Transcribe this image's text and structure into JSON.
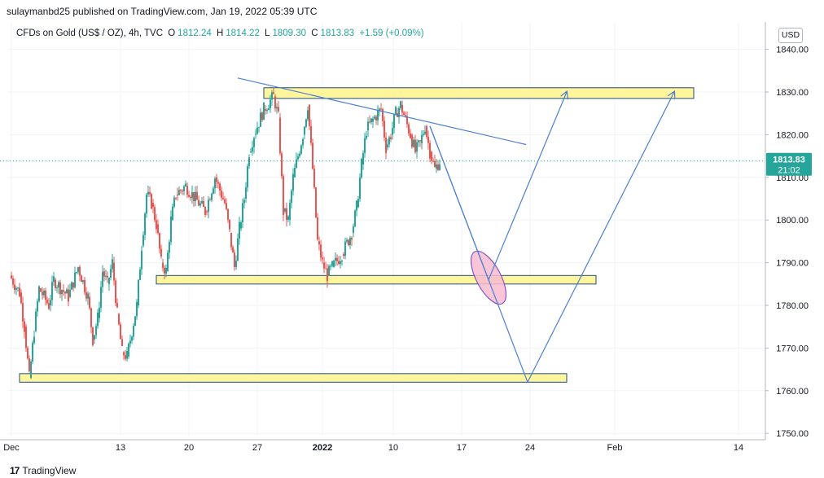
{
  "header": {
    "published_line": "sulaymanbd25 published on TradingView.com, Jan 19, 2022 05:39 UTC"
  },
  "legend": {
    "symbol": "CFDs on Gold (US$ / OZ), 4h, TVC",
    "open_label": "O",
    "open": "1812.24",
    "high_label": "H",
    "high": "1814.22",
    "low_label": "L",
    "low": "1809.30",
    "close_label": "C",
    "close": "1813.83",
    "change": "+1.59 (+0.09%)"
  },
  "currency_button": "USD",
  "price_badge": {
    "price": "1813.83",
    "countdown": "21:02"
  },
  "footer": {
    "brand": "TradingView",
    "logo_mark": "17"
  },
  "colors": {
    "up": "#26a69a",
    "down": "#ef5350",
    "zone_fill": "#fff59d",
    "zone_border": "#1e4d7a",
    "drawing": "#4a7fd4",
    "ellipse_fill": "#f8bbd0",
    "ellipse_stroke": "#7e57c2",
    "grid": "#f0f3fa",
    "axis_text": "#131722",
    "price_line": "#26a69a",
    "badge_bg": "#26a69a"
  },
  "chart_data": {
    "type": "candlestick",
    "title": "CFDs on Gold (US$ / OZ), 4h, TVC",
    "y_axis": {
      "ticks": [
        1750,
        1760,
        1770,
        1780,
        1790,
        1800,
        1810,
        1820,
        1830,
        1840
      ],
      "tick_labels": [
        "1750.00",
        "1760.00",
        "1770.00",
        "1780.00",
        "1790.00",
        "1800.00",
        "1810.00",
        "1820.00",
        "1830.00",
        "1840.00"
      ],
      "range": [
        1749.5,
        1848.0
      ],
      "position": "right"
    },
    "x_axis": {
      "tick_labels": [
        "Dec",
        "13",
        "20",
        "27",
        "2022",
        "10",
        "17",
        "24",
        "Feb",
        "14"
      ],
      "range_days": [
        "2021-12-06",
        "2022-02-14"
      ]
    },
    "last_price": 1813.83,
    "price_line": 1813.83,
    "candle_path_points": [
      [
        "2021-12-06",
        1787
      ],
      [
        "2021-12-07",
        1783
      ],
      [
        "2021-12-07T12",
        1775
      ],
      [
        "2021-12-08",
        1763
      ],
      [
        "2021-12-08T12",
        1774
      ],
      [
        "2021-12-09",
        1784
      ],
      [
        "2021-12-10",
        1780
      ],
      [
        "2021-12-10T12",
        1786
      ],
      [
        "2021-12-12",
        1782
      ],
      [
        "2021-12-13",
        1789
      ],
      [
        "2021-12-14",
        1782
      ],
      [
        "2021-12-14T12",
        1772
      ],
      [
        "2021-12-15",
        1777
      ],
      [
        "2021-12-15T12",
        1788
      ],
      [
        "2021-12-16",
        1785
      ],
      [
        "2021-12-16T12",
        1790
      ],
      [
        "2021-12-17",
        1778
      ],
      [
        "2021-12-17T12",
        1769
      ],
      [
        "2021-12-18",
        1768
      ],
      [
        "2021-12-19",
        1780
      ],
      [
        "2021-12-19T12",
        1794
      ],
      [
        "2021-12-20",
        1806
      ],
      [
        "2021-12-20T12",
        1804
      ],
      [
        "2021-12-21",
        1799
      ],
      [
        "2021-12-21T12",
        1790
      ],
      [
        "2021-12-22",
        1788
      ],
      [
        "2021-12-22T12",
        1800
      ],
      [
        "2021-12-23",
        1806
      ],
      [
        "2021-12-24",
        1808
      ],
      [
        "2021-12-26",
        1802
      ],
      [
        "2021-12-27",
        1810
      ],
      [
        "2021-12-28",
        1804
      ],
      [
        "2021-12-28T12",
        1797
      ],
      [
        "2021-12-29",
        1789
      ],
      [
        "2021-12-29T12",
        1798
      ],
      [
        "2021-12-30",
        1805
      ],
      [
        "2021-12-30T12",
        1816
      ],
      [
        "2021-12-31",
        1820
      ],
      [
        "2022-01-01",
        1826
      ],
      [
        "2022-01-02",
        1829
      ],
      [
        "2022-01-02T12",
        1824
      ],
      [
        "2022-01-03",
        1802
      ],
      [
        "2022-01-03T12",
        1800
      ],
      [
        "2022-01-04",
        1810
      ],
      [
        "2022-01-05",
        1820
      ],
      [
        "2022-01-05T12",
        1827
      ],
      [
        "2022-01-06",
        1812
      ],
      [
        "2022-01-06T12",
        1795
      ],
      [
        "2022-01-07",
        1790
      ],
      [
        "2022-01-07T12",
        1787
      ],
      [
        "2022-01-08",
        1789
      ],
      [
        "2022-01-09",
        1792
      ],
      [
        "2022-01-10",
        1797
      ],
      [
        "2022-01-10T12",
        1803
      ],
      [
        "2022-01-11",
        1813
      ],
      [
        "2022-01-11T12",
        1821
      ],
      [
        "2022-01-12",
        1823
      ],
      [
        "2022-01-13",
        1826
      ],
      [
        "2022-01-13T12",
        1817
      ],
      [
        "2022-01-14",
        1820
      ],
      [
        "2022-01-14T12",
        1825
      ],
      [
        "2022-01-15",
        1827
      ],
      [
        "2022-01-16",
        1820
      ],
      [
        "2022-01-16T12",
        1816
      ],
      [
        "2022-01-17",
        1818
      ],
      [
        "2022-01-17T12",
        1822
      ],
      [
        "2022-01-18",
        1816
      ],
      [
        "2022-01-18T12",
        1812
      ],
      [
        "2022-01-19",
        1813.83
      ]
    ],
    "annotations": {
      "zones": [
        {
          "from": "2022-01-01",
          "to": "2022-02-14",
          "price_low": 1828.5,
          "price_high": 1831
        },
        {
          "from": "2021-12-21",
          "to": "2022-02-04",
          "price_low": 1785,
          "price_high": 1787
        },
        {
          "from": "2021-12-07",
          "to": "2022-02-01",
          "price_low": 1762,
          "price_high": 1764
        }
      ],
      "trendline": {
        "points": [
          [
            "2021-12-31",
            1833
          ],
          [
            "2022-01-25",
            1817.5
          ]
        ]
      },
      "forecast_path_1": [
        [
          "2022-01-18",
          1822
        ],
        [
          "2022-01-24",
          1786
        ],
        [
          "2022-02-01",
          1830
        ]
      ],
      "forecast_path_2": [
        [
          "2022-01-18",
          1822
        ],
        [
          "2022-01-28",
          1762
        ],
        [
          "2022-02-12",
          1830
        ]
      ],
      "highlight_ellipse": {
        "center": [
          "2022-01-24",
          1786.5
        ],
        "price_radius": 6.5
      }
    }
  }
}
